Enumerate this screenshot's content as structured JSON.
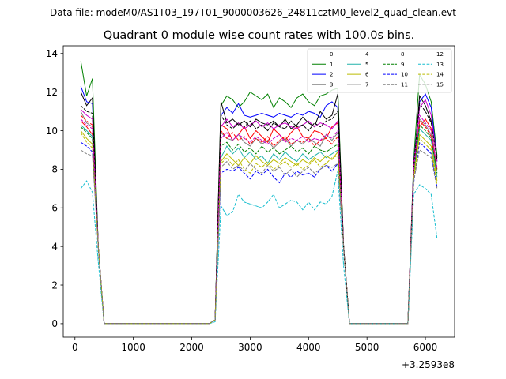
{
  "chart_data": {
    "type": "line",
    "suptitle": "Data file: modeM0/AS1T03_197T01_9000003626_24811cztM0_level2_quad_clean.evt",
    "title": "Quadrant 0 module wise count rates with 100.0s bins.",
    "xlabel": "",
    "ylabel": "",
    "x_offset_label": "+3.2593e8",
    "xlim": [
      -200,
      6500
    ],
    "ylim": [
      -0.7,
      14.4
    ],
    "x_ticks": [
      0,
      1000,
      2000,
      3000,
      4000,
      5000,
      6000
    ],
    "y_ticks": [
      0,
      2,
      4,
      6,
      8,
      10,
      12,
      14
    ],
    "legend_position": "top-right",
    "x": [
      100,
      200,
      300,
      400,
      500,
      600,
      700,
      800,
      900,
      1000,
      1100,
      1200,
      1300,
      1400,
      1500,
      1600,
      1700,
      1800,
      1900,
      2000,
      2100,
      2200,
      2300,
      2400,
      2500,
      2600,
      2700,
      2800,
      2900,
      3000,
      3100,
      3200,
      3300,
      3400,
      3500,
      3600,
      3700,
      3800,
      3900,
      4000,
      4100,
      4200,
      4300,
      4400,
      4500,
      4600,
      4700,
      4800,
      4900,
      5000,
      5100,
      5200,
      5300,
      5400,
      5500,
      5600,
      5700,
      5800,
      5900,
      6000,
      6100,
      6200
    ],
    "series": [
      {
        "name": "0",
        "color": "#ff0000",
        "dash": "solid",
        "values": [
          10.5,
          10.2,
          9.8,
          4,
          0,
          0,
          0,
          0,
          0,
          0,
          0,
          0,
          0,
          0,
          0,
          0,
          0,
          0,
          0,
          0,
          0,
          0,
          0,
          0.2,
          10.3,
          10.1,
          9.5,
          9.8,
          10.2,
          9.6,
          10,
          9.7,
          9.4,
          10.1,
          9.8,
          9.5,
          9.9,
          10.2,
          9.7,
          9.6,
          10,
          9.9,
          9.6,
          10.2,
          10.4,
          4,
          0,
          0,
          0,
          0,
          0,
          0,
          0,
          0,
          0,
          0,
          0,
          8.2,
          10.2,
          10.6,
          10.1,
          8
        ]
      },
      {
        "name": "1",
        "color": "#008000",
        "dash": "solid",
        "values": [
          13.6,
          11.8,
          12.7,
          4,
          0,
          0,
          0,
          0,
          0,
          0,
          0,
          0,
          0,
          0,
          0,
          0,
          0,
          0,
          0,
          0,
          0,
          0,
          0,
          0.2,
          11.3,
          11.8,
          11.6,
          11.2,
          11.5,
          12,
          11.8,
          11.6,
          11.9,
          11.2,
          11.7,
          11.5,
          11.2,
          11.7,
          11.9,
          11.5,
          11.3,
          11.8,
          11.9,
          12.1,
          12.2,
          4,
          0,
          0,
          0,
          0,
          0,
          0,
          0,
          0,
          0,
          0,
          0,
          8.5,
          12.9,
          12.4,
          11.5,
          8.7
        ]
      },
      {
        "name": "2",
        "color": "#0000ff",
        "dash": "solid",
        "values": [
          12.3,
          11.5,
          11.4,
          4,
          0,
          0,
          0,
          0,
          0,
          0,
          0,
          0,
          0,
          0,
          0,
          0,
          0,
          0,
          0,
          0,
          0,
          0,
          0,
          0.2,
          10.8,
          11.2,
          10.9,
          11.4,
          10.8,
          10.7,
          10.8,
          10.9,
          10.8,
          10.7,
          10.9,
          10.8,
          10.7,
          10.9,
          10.8,
          11,
          10.9,
          10.7,
          11.3,
          11.5,
          11.2,
          4,
          0,
          0,
          0,
          0,
          0,
          0,
          0,
          0,
          0,
          0,
          0,
          8.3,
          11.5,
          11.9,
          11.2,
          8.4
        ]
      },
      {
        "name": "3",
        "color": "#000000",
        "dash": "solid",
        "values": [
          12,
          11.3,
          11.7,
          4,
          0,
          0,
          0,
          0,
          0,
          0,
          0,
          0,
          0,
          0,
          0,
          0,
          0,
          0,
          0,
          0,
          0,
          0,
          0,
          0.2,
          11.5,
          10.4,
          10.6,
          10.3,
          10.5,
          10.2,
          10.6,
          10.4,
          10.3,
          10.5,
          10.2,
          10.6,
          10.1,
          10.3,
          10.7,
          10.4,
          10.2,
          11,
          10.6,
          10.8,
          11.9,
          4,
          0,
          0,
          0,
          0,
          0,
          0,
          0,
          0,
          0,
          0,
          0,
          8,
          11.8,
          11.3,
          10.5,
          8.6
        ]
      },
      {
        "name": "4",
        "color": "#cc00cc",
        "dash": "solid",
        "values": [
          11.1,
          10.8,
          10.6,
          4,
          0,
          0,
          0,
          0,
          0,
          0,
          0,
          0,
          0,
          0,
          0,
          0,
          0,
          0,
          0,
          0,
          0,
          0,
          0,
          0.2,
          10.2,
          10.6,
          10.2,
          10.4,
          10.1,
          10.3,
          10.5,
          10.2,
          10.4,
          10.1,
          10.3,
          10.4,
          10.2,
          10.1,
          10.3,
          10.5,
          10.2,
          10.4,
          10.3,
          10.1,
          10.5,
          4,
          0,
          0,
          0,
          0,
          0,
          0,
          0,
          0,
          0,
          0,
          0,
          8.3,
          11.2,
          11.6,
          10.8,
          8.4
        ]
      },
      {
        "name": "5",
        "color": "#20b2aa",
        "dash": "solid",
        "values": [
          10.3,
          10,
          9.7,
          4,
          0,
          0,
          0,
          0,
          0,
          0,
          0,
          0,
          0,
          0,
          0,
          0,
          0,
          0,
          0,
          0,
          0,
          0,
          0,
          0.2,
          8.6,
          9.2,
          8.8,
          9.1,
          8.6,
          8.9,
          8.5,
          8.7,
          8.3,
          8.8,
          8.5,
          8.9,
          8.6,
          8.4,
          8.8,
          8.5,
          8.7,
          8.9,
          8.6,
          8.8,
          9,
          4,
          0,
          0,
          0,
          0,
          0,
          0,
          0,
          0,
          0,
          0,
          0,
          7.8,
          10.1,
          9.8,
          9.5,
          7.6
        ]
      },
      {
        "name": "6",
        "color": "#bbbb00",
        "dash": "solid",
        "values": [
          10,
          9.6,
          9.3,
          4,
          0,
          0,
          0,
          0,
          0,
          0,
          0,
          0,
          0,
          0,
          0,
          0,
          0,
          0,
          0,
          0,
          0,
          0,
          0,
          0.2,
          8.4,
          8.8,
          8.5,
          8.2,
          8.6,
          8.3,
          8.7,
          8.4,
          8.2,
          8.5,
          8.3,
          8.6,
          8.4,
          8.2,
          8.5,
          8.3,
          8.6,
          8.4,
          8.7,
          8.5,
          8.9,
          4,
          0,
          0,
          0,
          0,
          0,
          0,
          0,
          0,
          0,
          0,
          0,
          7.6,
          9.8,
          9.5,
          9.2,
          7.4
        ]
      },
      {
        "name": "7",
        "color": "#808080",
        "dash": "solid",
        "values": [
          11,
          10.4,
          10.2,
          4,
          0,
          0,
          0,
          0,
          0,
          0,
          0,
          0,
          0,
          0,
          0,
          0,
          0,
          0,
          0,
          0,
          0,
          0,
          0,
          0.2,
          9.9,
          9.6,
          9.5,
          9.8,
          9.4,
          9.2,
          9.6,
          9.3,
          9.5,
          9.1,
          9.4,
          9.6,
          9.2,
          9.5,
          9.3,
          9.6,
          9.4,
          9.2,
          9.8,
          9.5,
          9.9,
          4,
          0,
          0,
          0,
          0,
          0,
          0,
          0,
          0,
          0,
          0,
          0,
          8,
          10.6,
          10.3,
          9.8,
          8
        ]
      },
      {
        "name": "8",
        "color": "#ff0000",
        "dash": "dashed",
        "values": [
          10.8,
          10.5,
          10.3,
          4,
          0,
          0,
          0,
          0,
          0,
          0,
          0,
          0,
          0,
          0,
          0,
          0,
          0,
          0,
          0,
          0,
          0,
          0,
          0,
          0.2,
          10,
          9.6,
          9.9,
          9.5,
          9.7,
          9.3,
          9.6,
          9.4,
          9.7,
          9.2,
          9.5,
          9.7,
          9.3,
          9.5,
          9.4,
          9.6,
          9.2,
          9.5,
          9.6,
          9.3,
          9.7,
          4,
          0,
          0,
          0,
          0,
          0,
          0,
          0,
          0,
          0,
          0,
          0,
          8.1,
          10.5,
          10.2,
          9.7,
          7.9
        ]
      },
      {
        "name": "9",
        "color": "#008000",
        "dash": "dashed",
        "values": [
          10.2,
          9.9,
          9.6,
          4,
          0,
          0,
          0,
          0,
          0,
          0,
          0,
          0,
          0,
          0,
          0,
          0,
          0,
          0,
          0,
          0,
          0,
          0,
          0,
          0.2,
          9.2,
          9.4,
          9,
          9.3,
          8.9,
          9.1,
          8.8,
          9.2,
          8.9,
          9.1,
          8.8,
          9,
          9.2,
          8.9,
          9.1,
          8.8,
          9.2,
          9,
          8.9,
          9.1,
          9.3,
          4,
          0,
          0,
          0,
          0,
          0,
          0,
          0,
          0,
          0,
          0,
          0,
          7.9,
          10.3,
          10,
          9.6,
          7.8
        ]
      },
      {
        "name": "10",
        "color": "#0000ff",
        "dash": "dashed",
        "values": [
          9.4,
          9.2,
          8.9,
          4,
          0,
          0,
          0,
          0,
          0,
          0,
          0,
          0,
          0,
          0,
          0,
          0,
          0,
          0,
          0,
          0,
          0,
          0,
          0,
          0.2,
          7.8,
          8,
          7.9,
          8.1,
          7.8,
          7.5,
          7.9,
          7.7,
          8,
          7.6,
          7.3,
          7.8,
          7.6,
          7.9,
          7.7,
          7.8,
          7.6,
          8,
          8.2,
          7.9,
          8.3,
          4,
          0,
          0,
          0,
          0,
          0,
          0,
          0,
          0,
          0,
          0,
          0,
          7.3,
          9.4,
          9.1,
          8.8,
          7.1
        ]
      },
      {
        "name": "11",
        "color": "#000000",
        "dash": "dashed",
        "values": [
          11.3,
          11,
          10.9,
          4,
          0,
          0,
          0,
          0,
          0,
          0,
          0,
          0,
          0,
          0,
          0,
          0,
          0,
          0,
          0,
          0,
          0,
          0,
          0,
          0.2,
          10.8,
          10.3,
          10.1,
          10.4,
          10.2,
          10.5,
          10.1,
          10.3,
          10,
          10.4,
          10.2,
          10.1,
          10.5,
          10.2,
          10.3,
          10,
          10.4,
          10.2,
          10.5,
          10.6,
          11,
          4,
          0,
          0,
          0,
          0,
          0,
          0,
          0,
          0,
          0,
          0,
          0,
          8.2,
          11.4,
          11,
          10.4,
          8.5
        ]
      },
      {
        "name": "12",
        "color": "#cc00cc",
        "dash": "dashed",
        "values": [
          10.6,
          10.3,
          10.1,
          4,
          0,
          0,
          0,
          0,
          0,
          0,
          0,
          0,
          0,
          0,
          0,
          0,
          0,
          0,
          0,
          0,
          0,
          0,
          0,
          0.2,
          9.6,
          9.9,
          9.5,
          9.8,
          9.6,
          9.4,
          9.7,
          9.5,
          9.3,
          9.6,
          9.8,
          9.4,
          9.6,
          9.5,
          9.7,
          9.4,
          9.6,
          9.5,
          9.8,
          9.6,
          10,
          4,
          0,
          0,
          0,
          0,
          0,
          0,
          0,
          0,
          0,
          0,
          0,
          8,
          10.8,
          10.4,
          10,
          8.1
        ]
      },
      {
        "name": "13",
        "color": "#17becf",
        "dash": "dashed",
        "values": [
          7,
          7.4,
          6.8,
          3.2,
          0,
          0,
          0,
          0,
          0,
          0,
          0,
          0,
          0,
          0,
          0,
          0,
          0,
          0,
          0,
          0,
          0,
          0,
          0,
          0.1,
          6.1,
          5.6,
          5.8,
          6.7,
          6.3,
          6.2,
          6.1,
          6,
          6.3,
          6.7,
          6,
          6.2,
          6.4,
          6.3,
          5.9,
          6.3,
          5.9,
          6.3,
          6.2,
          6.6,
          7.9,
          3,
          0,
          0,
          0,
          0,
          0,
          0,
          0,
          0,
          0,
          0,
          0,
          6.7,
          7.2,
          7,
          6.7,
          4.4
        ]
      },
      {
        "name": "14",
        "color": "#bbbb00",
        "dash": "dashed",
        "values": [
          9.9,
          9.4,
          9.1,
          4,
          0,
          0,
          0,
          0,
          0,
          0,
          0,
          0,
          0,
          0,
          0,
          0,
          0,
          0,
          0,
          0,
          0,
          0,
          0,
          0.2,
          8.3,
          8.6,
          8.2,
          8.5,
          8,
          7.8,
          8.3,
          8.1,
          8.4,
          8,
          8.2,
          8.4,
          8.1,
          8.3,
          8,
          8.2,
          8.5,
          8.1,
          8.3,
          8.6,
          8.7,
          4,
          0,
          0,
          0,
          0,
          0,
          0,
          0,
          0,
          0,
          0,
          0,
          7.5,
          9.6,
          9.3,
          9,
          7.2
        ]
      },
      {
        "name": "15",
        "color": "#808080",
        "dash": "dashed",
        "values": [
          9,
          8.8,
          8.7,
          4,
          0,
          0,
          0,
          0,
          0,
          0,
          0,
          0,
          0,
          0,
          0,
          0,
          0,
          0,
          0,
          0,
          0,
          0,
          0,
          0.2,
          8.1,
          8.4,
          8,
          8.2,
          7.9,
          8.3,
          8,
          7.8,
          8.2,
          7.9,
          8.1,
          7.7,
          8,
          7.6,
          7.9,
          8.1,
          7.8,
          8,
          8.2,
          8.1,
          8.3,
          4,
          0,
          0,
          0,
          0,
          0,
          0,
          0,
          0,
          0,
          0,
          0,
          7.4,
          9,
          8.8,
          8.6,
          7
        ]
      }
    ]
  }
}
